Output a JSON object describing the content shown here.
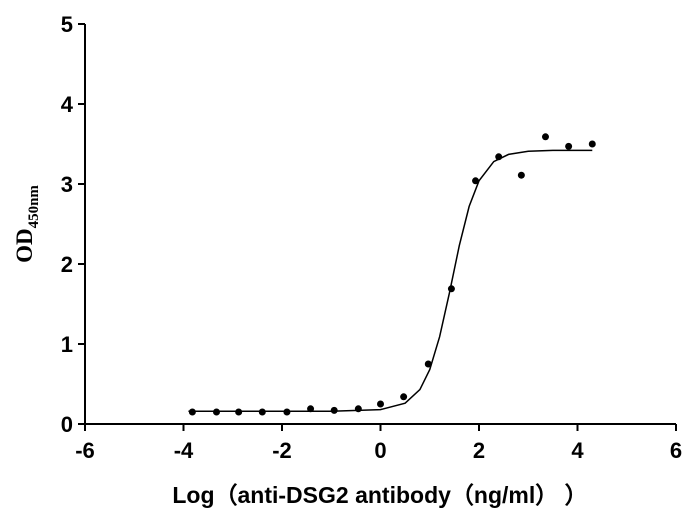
{
  "chart_data": {
    "type": "scatter",
    "x_label": "Log（anti-DSG2 antibody（ng/ml） ）",
    "y_label": "OD",
    "y_label_sub": "450nm",
    "xlim": [
      -6,
      6
    ],
    "xticks": [
      -6,
      -4,
      -2,
      0,
      2,
      4,
      6
    ],
    "ylim": [
      0,
      5
    ],
    "yticks": [
      0,
      1,
      2,
      3,
      4,
      5
    ],
    "series": [
      {
        "style": "points",
        "color": "#000000",
        "x": [
          -3.82,
          -3.33,
          -2.88,
          -2.4,
          -1.9,
          -1.42,
          -0.94,
          -0.45,
          0,
          0.47,
          0.97,
          1.44,
          1.93,
          2.4,
          2.86,
          3.35,
          3.82,
          4.3
        ],
        "values": [
          0.15,
          0.15,
          0.15,
          0.15,
          0.15,
          0.19,
          0.17,
          0.19,
          0.25,
          0.34,
          0.75,
          1.69,
          3.04,
          3.34,
          3.11,
          3.59,
          3.47,
          3.5
        ]
      },
      {
        "style": "line",
        "color": "#000000",
        "x": [
          -3.9,
          -3,
          -2,
          -1,
          0,
          0.5,
          0.8,
          1,
          1.2,
          1.4,
          1.6,
          1.8,
          2,
          2.3,
          2.6,
          3,
          3.5,
          4.3
        ],
        "values": [
          0.16,
          0.16,
          0.16,
          0.16,
          0.18,
          0.26,
          0.43,
          0.68,
          1.09,
          1.64,
          2.23,
          2.72,
          3.04,
          3.28,
          3.37,
          3.41,
          3.42,
          3.42
        ]
      }
    ]
  }
}
